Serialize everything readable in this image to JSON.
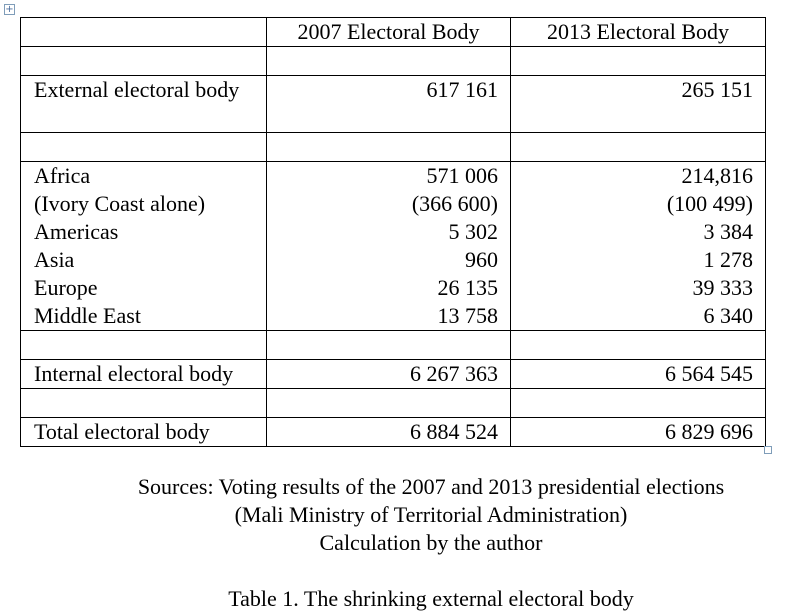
{
  "table": {
    "handle_glyph": "+",
    "headers": [
      "",
      "2007 Electoral Body",
      "2013 Electoral Body"
    ],
    "external": {
      "label": "External electoral body",
      "v2007": "617 161",
      "v2013": "265 151"
    },
    "regions": {
      "labels": [
        "Africa",
        "(Ivory Coast alone)",
        "Americas",
        "Asia",
        "Europe",
        "Middle East"
      ],
      "v2007": [
        "571 006",
        "(366 600)",
        "5 302",
        "960",
        "26 135",
        "13 758"
      ],
      "v2013": [
        "214,816",
        "(100 499)",
        "3 384",
        "1 278",
        "39 333",
        "6 340"
      ]
    },
    "internal": {
      "label": "Internal electoral body",
      "v2007": "6 267 363",
      "v2013": "6 564 545"
    },
    "total": {
      "label": "Total electoral body",
      "v2007": "6 884 524",
      "v2013": "6 829 696"
    }
  },
  "sources": [
    "Sources: Voting results of the 2007 and 2013 presidential elections",
    "(Mali Ministry of Territorial Administration)",
    "Calculation by the author"
  ],
  "caption": "Table 1. The shrinking external electoral body"
}
